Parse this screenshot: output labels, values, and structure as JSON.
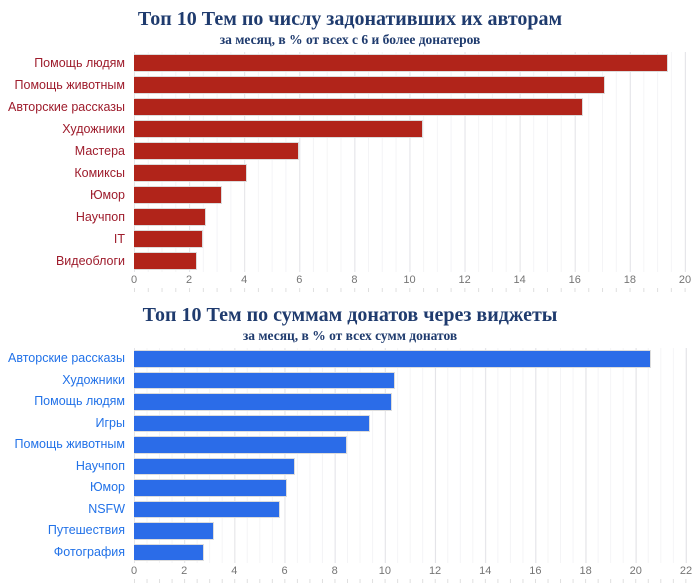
{
  "title_color": "#1f3b6e",
  "axis_tick_color": "#757575",
  "chart_data": [
    {
      "type": "bar",
      "orientation": "horizontal",
      "title": "Топ 10 Тем по числу задонативших их авторам",
      "subtitle": "за месяц, в % от всех с 6 и более донатеров",
      "categories": [
        "Помощь людям",
        "Помощь животным",
        "Авторские рассказы",
        "Художники",
        "Мастера",
        "Комиксы",
        "Юмор",
        "Научпоп",
        "IT",
        "Видеоблоги"
      ],
      "values": [
        19.4,
        17.1,
        16.3,
        10.5,
        6.0,
        4.1,
        3.2,
        2.6,
        2.5,
        2.3
      ],
      "xlabel": "",
      "ylabel": "",
      "xticks": [
        0,
        2,
        4,
        6,
        8,
        10,
        12,
        14,
        16,
        18,
        20
      ],
      "xlim": [
        0,
        20.4
      ],
      "grid": "on",
      "legend": "none",
      "bar_color": "#b1241a",
      "label_color": "#9e1c2c",
      "grid_major_color": "#e4e4e8",
      "grid_minor_color": "#f4f4f6"
    },
    {
      "type": "bar",
      "orientation": "horizontal",
      "title": "Топ 10 Тем по суммам донатов через виджеты",
      "subtitle": "за месяц, в % от всех сумм донатов",
      "categories": [
        "Авторские рассказы",
        "Художники",
        "Помощь людям",
        "Игры",
        "Помощь животным",
        "Научпоп",
        "Юмор",
        "NSFW",
        "Путешествия",
        "Фотография"
      ],
      "values": [
        20.6,
        10.4,
        10.3,
        9.4,
        8.5,
        6.4,
        6.1,
        5.8,
        3.2,
        2.8
      ],
      "xlabel": "",
      "ylabel": "",
      "xticks": [
        0,
        2,
        4,
        6,
        8,
        10,
        12,
        14,
        16,
        18,
        20,
        22
      ],
      "xlim": [
        0,
        22.4
      ],
      "grid": "on",
      "legend": "none",
      "bar_color": "#2b6ce8",
      "label_color": "#2272e8",
      "grid_major_color": "#e4e4e8",
      "grid_minor_color": "#f4f4f6"
    }
  ]
}
